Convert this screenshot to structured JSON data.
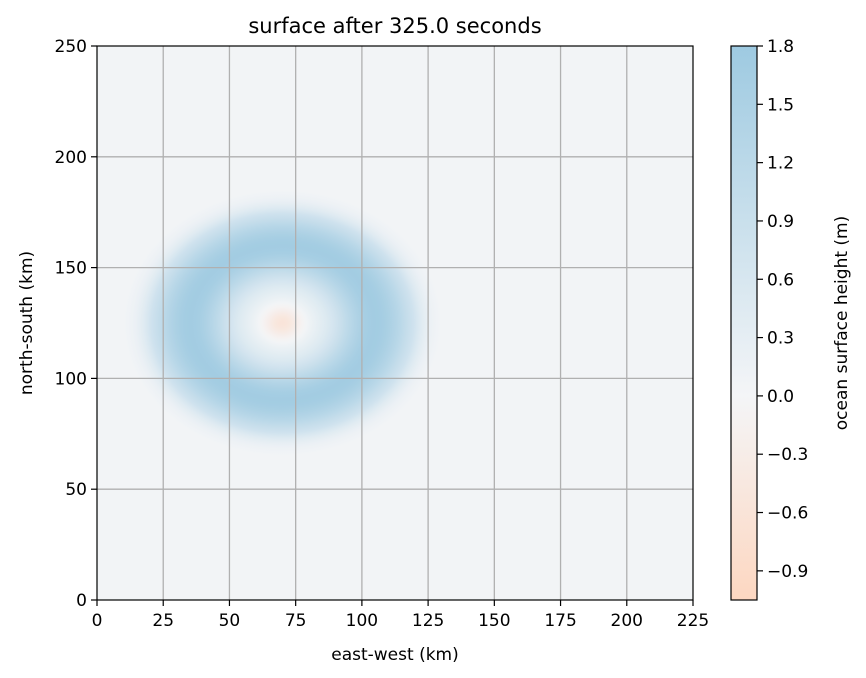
{
  "chart_data": {
    "type": "heatmap",
    "title": "surface after 325.0 seconds",
    "xlabel": "east-west (km)",
    "ylabel": "north-south (km)",
    "xlim": [
      0,
      225
    ],
    "ylim": [
      0,
      250
    ],
    "xticks": [
      0,
      25,
      50,
      75,
      100,
      125,
      150,
      175,
      200,
      225
    ],
    "yticks": [
      0,
      50,
      100,
      150,
      200,
      250
    ],
    "grid": true,
    "field": {
      "kind": "ring-wave",
      "center_km": [
        70,
        125
      ],
      "peak_radius_km": 35,
      "ring_width_km": 16,
      "outer_radius_km": 60,
      "center_value_m": -0.6,
      "peak_value_m": 1.7,
      "background_value_m": 0.05
    },
    "colorbar": {
      "label": "ocean surface height (m)",
      "range": [
        -1.05,
        1.8
      ],
      "ticks": [
        1.8,
        1.5,
        1.2,
        0.9,
        0.6,
        0.3,
        0.0,
        -0.3,
        -0.6,
        -0.9
      ],
      "tick_labels": [
        "1.8",
        "1.5",
        "1.2",
        "0.9",
        "0.6",
        "0.3",
        "0.0",
        "−0.3",
        "−0.6",
        "−0.9"
      ],
      "colors": {
        "high": "#9ecae1",
        "zero": "#f4f5f7",
        "low": "#fdd7c1"
      }
    }
  }
}
